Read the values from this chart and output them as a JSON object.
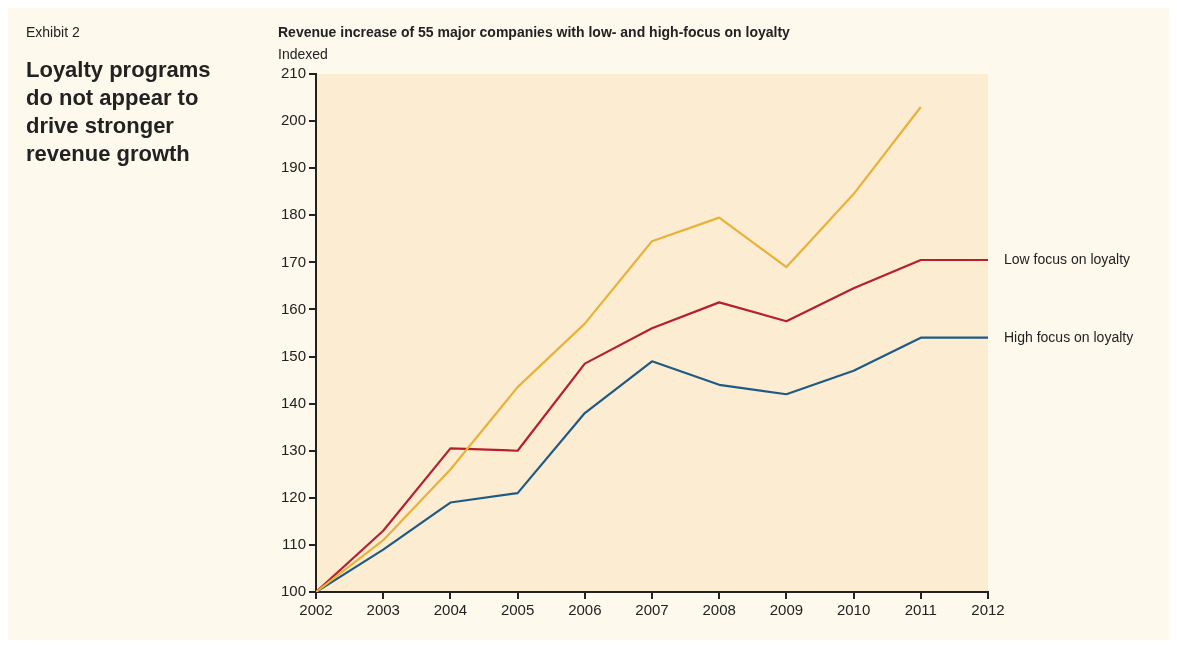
{
  "chart_data": {
    "type": "line",
    "title": "Loyalty programs do not appear to drive stronger revenue growth",
    "subtitle": "Revenue increase of 55 major companies with low- and high-focus on loyalty",
    "ylabel": "Indexed",
    "annotations": [
      "Exhibit 2"
    ],
    "x": [
      2002,
      2003,
      2004,
      2005,
      2006,
      2007,
      2008,
      2009,
      2010,
      2011,
      2012
    ],
    "xlim": [
      2002,
      2012
    ],
    "xticks": [
      2002,
      2003,
      2004,
      2005,
      2006,
      2007,
      2008,
      2009,
      2010,
      2011,
      2012
    ],
    "ylim": [
      100,
      210
    ],
    "yticks": [
      100,
      110,
      120,
      130,
      140,
      150,
      160,
      170,
      180,
      190,
      200,
      210
    ],
    "grid": false,
    "legend": false,
    "marker": "none",
    "line_style": "solid",
    "series": [
      {
        "color": "#e8b13a",
        "values": [
          100,
          111,
          126,
          143.5,
          157,
          174.5,
          179.5,
          169,
          184.5,
          203,
          null
        ]
      },
      {
        "name": "Low focus on loyalty",
        "color": "#b5202e",
        "values": [
          100,
          113,
          130.5,
          130,
          148.5,
          156,
          161.5,
          157.5,
          164.5,
          170.5,
          170.5
        ]
      },
      {
        "name": "High focus on loyalty",
        "color": "#1f5a85",
        "values": [
          100,
          109,
          119,
          121,
          138,
          149,
          144,
          142,
          147,
          154,
          154
        ]
      }
    ]
  }
}
